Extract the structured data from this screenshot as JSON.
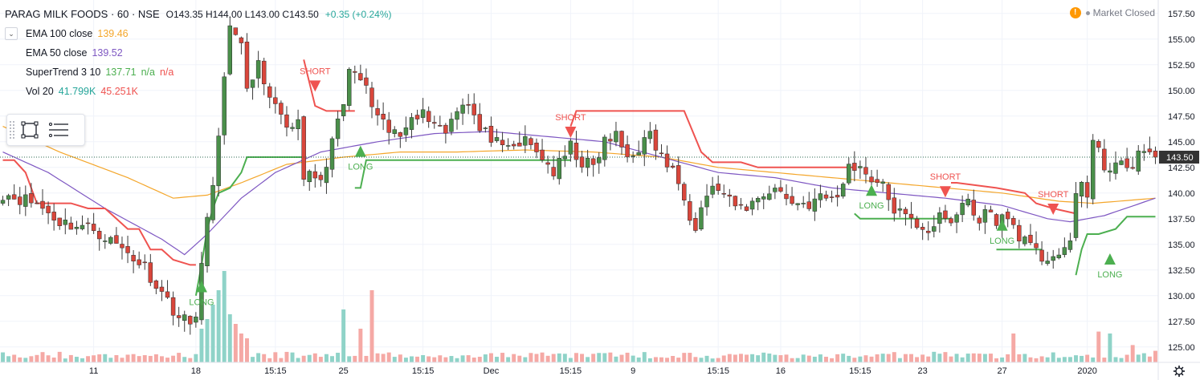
{
  "header": {
    "symbol": "PARAG MILK FOODS · 60 · NSE",
    "ohlc": "O143.35 H144.00 L143.00 C143.50",
    "change": "+0.35 (+0.24%)",
    "status": "Market Closed",
    "warn_icon": "!"
  },
  "legend": [
    {
      "name": "EMA 100 close",
      "values": [
        {
          "text": "139.46",
          "color": "#f4a62a"
        }
      ]
    },
    {
      "name": "EMA 50 close",
      "values": [
        {
          "text": "139.52",
          "color": "#7e57c2"
        }
      ]
    },
    {
      "name": "SuperTrend 3 10",
      "values": [
        {
          "text": "137.71",
          "color": "#4caf50"
        },
        {
          "text": "n/a",
          "color": "#4caf50"
        },
        {
          "text": "n/a",
          "color": "#ef5350"
        }
      ]
    },
    {
      "name": "Vol 20",
      "values": [
        {
          "text": "41.799K",
          "color": "#26a69a"
        },
        {
          "text": "45.251K",
          "color": "#ef5350"
        }
      ]
    }
  ],
  "colors": {
    "up": "#26a69a",
    "candle_up": "#4a8f4a",
    "candle_down": "#d9463b",
    "ema100": "#f4a62a",
    "ema50": "#7e57c2",
    "st_up": "#4caf50",
    "st_down": "#ef5350",
    "vol_up": "#8fd3c8",
    "vol_down": "#f5a9a5",
    "last_price_bg": "#333333"
  },
  "toolbar": {
    "icons": [
      "rectangle-select-icon",
      "menu-lines-icon"
    ]
  },
  "chart_data": {
    "type": "candlestick",
    "title": "PARAG MILK FOODS · 60 · NSE",
    "y_ticks": [
      125.0,
      127.5,
      130.0,
      132.5,
      135.0,
      137.5,
      140.0,
      142.5,
      145.0,
      147.5,
      150.0,
      152.5,
      155.0,
      157.5
    ],
    "ylim": [
      123.5,
      158.5
    ],
    "last_price": "143.50",
    "x_tick_labels": [
      "11",
      "18",
      "15:15",
      "25",
      "15:15",
      "Dec",
      "15:15",
      "9",
      "15:15",
      "16",
      "15:15",
      "23",
      "27",
      "2020"
    ],
    "x_tick_positions": [
      16,
      34,
      48,
      60,
      74,
      86,
      100,
      111,
      126,
      137,
      151,
      162,
      176,
      191
    ],
    "bar_count": 204,
    "close_anchors": [
      [
        0,
        140.0
      ],
      [
        6,
        139.0
      ],
      [
        10,
        137.2
      ],
      [
        16,
        136.5
      ],
      [
        22,
        134.2
      ],
      [
        25,
        132.8
      ],
      [
        28,
        130.3
      ],
      [
        31,
        128.0
      ],
      [
        33,
        127.2
      ],
      [
        34,
        128.5
      ],
      [
        35,
        133.0
      ],
      [
        37,
        141.0
      ],
      [
        38,
        145.0
      ],
      [
        39,
        152.0
      ],
      [
        40,
        156.0
      ],
      [
        42,
        154.0
      ],
      [
        43,
        150.5
      ],
      [
        45,
        152.5
      ],
      [
        46,
        150.0
      ],
      [
        48,
        148.0
      ],
      [
        50,
        146.5
      ],
      [
        52,
        147.0
      ],
      [
        53,
        142.0
      ],
      [
        55,
        141.0
      ],
      [
        57,
        142.0
      ],
      [
        58,
        146.0
      ],
      [
        60,
        148.0
      ],
      [
        61,
        152.0
      ],
      [
        63,
        151.0
      ],
      [
        64,
        150.0
      ],
      [
        66,
        147.0
      ],
      [
        68,
        146.0
      ],
      [
        70,
        145.5
      ],
      [
        72,
        148.0
      ],
      [
        75,
        147.5
      ],
      [
        78,
        146.0
      ],
      [
        80,
        148.5
      ],
      [
        82,
        149.0
      ],
      [
        84,
        146.0
      ],
      [
        86,
        145.5
      ],
      [
        88,
        144.0
      ],
      [
        90,
        144.5
      ],
      [
        92,
        145.0
      ],
      [
        95,
        143.5
      ],
      [
        97,
        142.0
      ],
      [
        99,
        143.5
      ],
      [
        100,
        144.5
      ],
      [
        102,
        143.0
      ],
      [
        104,
        142.5
      ],
      [
        106,
        145.0
      ],
      [
        108,
        145.5
      ],
      [
        110,
        143.5
      ],
      [
        112,
        144.5
      ],
      [
        114,
        145.5
      ],
      [
        116,
        143.5
      ],
      [
        118,
        142.0
      ],
      [
        120,
        140.0
      ],
      [
        121,
        138.0
      ],
      [
        122,
        137.0
      ],
      [
        124,
        140.0
      ],
      [
        126,
        140.5
      ],
      [
        128,
        139.0
      ],
      [
        130,
        138.5
      ],
      [
        132,
        139.0
      ],
      [
        134,
        140.0
      ],
      [
        136,
        140.5
      ],
      [
        138,
        139.5
      ],
      [
        140,
        139.0
      ],
      [
        142,
        139.0
      ],
      [
        144,
        139.5
      ],
      [
        146,
        139.5
      ],
      [
        148,
        140.5
      ],
      [
        149,
        143.0
      ],
      [
        151,
        142.5
      ],
      [
        153,
        141.5
      ],
      [
        155,
        140.5
      ],
      [
        157,
        138.5
      ],
      [
        159,
        137.5
      ],
      [
        161,
        137.0
      ],
      [
        163,
        136.5
      ],
      [
        165,
        137.5
      ],
      [
        167,
        137.0
      ],
      [
        169,
        139.0
      ],
      [
        170,
        139.5
      ],
      [
        171,
        137.5
      ],
      [
        173,
        138.0
      ],
      [
        175,
        137.5
      ],
      [
        177,
        137.5
      ],
      [
        179,
        136.0
      ],
      [
        181,
        134.5
      ],
      [
        183,
        133.7
      ],
      [
        185,
        134.0
      ],
      [
        187,
        134.0
      ],
      [
        188,
        135.0
      ],
      [
        189,
        140.0
      ],
      [
        190,
        141.5
      ],
      [
        191,
        139.5
      ],
      [
        192,
        145.0
      ],
      [
        194,
        142.5
      ],
      [
        196,
        143.0
      ],
      [
        198,
        142.0
      ],
      [
        200,
        144.0
      ],
      [
        202,
        143.5
      ],
      [
        203,
        143.5
      ]
    ],
    "ema100_anchors": [
      [
        0,
        146.5
      ],
      [
        10,
        144.0
      ],
      [
        22,
        141.5
      ],
      [
        28,
        140.0
      ],
      [
        30,
        139.5
      ],
      [
        36,
        139.8
      ],
      [
        42,
        141.0
      ],
      [
        50,
        142.8
      ],
      [
        60,
        143.5
      ],
      [
        70,
        144.0
      ],
      [
        80,
        144.0
      ],
      [
        92,
        144.2
      ],
      [
        104,
        144.0
      ],
      [
        116,
        143.5
      ],
      [
        126,
        142.5
      ],
      [
        136,
        142.0
      ],
      [
        146,
        141.5
      ],
      [
        156,
        141.0
      ],
      [
        166,
        140.5
      ],
      [
        176,
        140.0
      ],
      [
        186,
        139.2
      ],
      [
        192,
        139.0
      ],
      [
        203,
        139.5
      ]
    ],
    "ema50_anchors": [
      [
        0,
        144.0
      ],
      [
        8,
        142.0
      ],
      [
        18,
        138.5
      ],
      [
        28,
        135.5
      ],
      [
        32,
        134.0
      ],
      [
        36,
        136.0
      ],
      [
        42,
        139.5
      ],
      [
        48,
        142.0
      ],
      [
        56,
        144.0
      ],
      [
        66,
        145.0
      ],
      [
        76,
        145.8
      ],
      [
        86,
        146.0
      ],
      [
        96,
        145.5
      ],
      [
        106,
        145.0
      ],
      [
        116,
        143.5
      ],
      [
        126,
        142.0
      ],
      [
        136,
        141.5
      ],
      [
        146,
        140.5
      ],
      [
        156,
        140.0
      ],
      [
        166,
        139.5
      ],
      [
        176,
        138.8
      ],
      [
        184,
        137.5
      ],
      [
        188,
        137.2
      ],
      [
        194,
        137.8
      ],
      [
        203,
        139.5
      ]
    ],
    "supertrend": [
      {
        "trend": "down",
        "points": [
          [
            0,
            143.2
          ],
          [
            2,
            143.2
          ],
          [
            4,
            142.0
          ],
          [
            6,
            139.0
          ],
          [
            12,
            139.0
          ],
          [
            15,
            138.5
          ],
          [
            18,
            138.5
          ],
          [
            20,
            137.5
          ],
          [
            22,
            136.5
          ],
          [
            24,
            136.5
          ],
          [
            26,
            134.5
          ],
          [
            28,
            134.5
          ],
          [
            30,
            133.5
          ],
          [
            33,
            133.0
          ],
          [
            34,
            133.0
          ]
        ]
      },
      {
        "trend": "up",
        "points": [
          [
            34,
            130.0
          ],
          [
            35,
            133.0
          ],
          [
            36,
            136.5
          ],
          [
            37,
            138.5
          ],
          [
            38,
            140.0
          ],
          [
            40,
            140.5
          ],
          [
            42,
            142.0
          ],
          [
            43,
            143.5
          ],
          [
            53,
            143.5
          ]
        ]
      },
      {
        "trend": "down",
        "points": [
          [
            53,
            153.0
          ],
          [
            55,
            148.5
          ],
          [
            57,
            148.0
          ],
          [
            60,
            148.0
          ],
          [
            62,
            148.0
          ]
        ]
      },
      {
        "trend": "up",
        "points": [
          [
            62,
            140.5
          ],
          [
            63,
            140.5
          ],
          [
            64,
            143.2
          ],
          [
            98,
            143.2
          ],
          [
            100,
            143.2
          ]
        ]
      },
      {
        "trend": "down",
        "points": [
          [
            100,
            146.5
          ],
          [
            101,
            148.0
          ],
          [
            104,
            148.0
          ],
          [
            120,
            148.0
          ],
          [
            123,
            144.0
          ],
          [
            125,
            143.0
          ],
          [
            130,
            143.0
          ],
          [
            133,
            142.5
          ],
          [
            150,
            142.5
          ]
        ]
      },
      {
        "trend": "up",
        "points": [
          [
            150,
            138.0
          ],
          [
            151,
            137.5
          ],
          [
            158,
            137.5
          ],
          [
            167,
            137.5
          ],
          [
            167,
            137.5
          ]
        ]
      },
      {
        "trend": "down",
        "points": [
          [
            167,
            141.0
          ],
          [
            168,
            141.0
          ],
          [
            175,
            140.5
          ],
          [
            180,
            140.0
          ],
          [
            182,
            139.0
          ],
          [
            185,
            138.5
          ],
          [
            189,
            138.0
          ]
        ]
      },
      {
        "trend": "up",
        "points": [
          [
            175,
            134.5
          ],
          [
            183,
            134.5
          ]
        ]
      },
      {
        "trend": "up",
        "points": [
          [
            189,
            132.0
          ],
          [
            190,
            134.5
          ],
          [
            191,
            136.0
          ],
          [
            193,
            136.0
          ],
          [
            196,
            136.5
          ],
          [
            198,
            137.7
          ],
          [
            203,
            137.7
          ]
        ]
      }
    ],
    "signals": [
      {
        "type": "LONG",
        "bar": 35,
        "price": 130.8
      },
      {
        "type": "SHORT",
        "bar": 55,
        "price": 150.5
      },
      {
        "type": "LONG",
        "bar": 63,
        "price": 144.0
      },
      {
        "type": "SHORT",
        "bar": 100,
        "price": 146.0
      },
      {
        "type": "LONG",
        "bar": 153,
        "price": 140.2
      },
      {
        "type": "SHORT",
        "bar": 166,
        "price": 140.2
      },
      {
        "type": "LONG",
        "bar": 176,
        "price": 136.8
      },
      {
        "type": "SHORT",
        "bar": 185,
        "price": 138.5
      },
      {
        "type": "LONG",
        "bar": 195,
        "price": 133.5
      }
    ],
    "volume_spikes": [
      [
        35,
        0.35
      ],
      [
        36,
        0.45
      ],
      [
        37,
        0.6
      ],
      [
        38,
        0.75
      ],
      [
        39,
        0.95
      ],
      [
        40,
        0.5
      ],
      [
        41,
        0.4
      ],
      [
        42,
        0.3
      ],
      [
        43,
        0.25
      ],
      [
        60,
        0.55
      ],
      [
        63,
        0.35
      ],
      [
        65,
        0.75
      ],
      [
        178,
        0.3
      ],
      [
        193,
        0.32
      ],
      [
        195,
        0.3
      ],
      [
        199,
        0.18
      ],
      [
        203,
        0.12
      ]
    ]
  }
}
